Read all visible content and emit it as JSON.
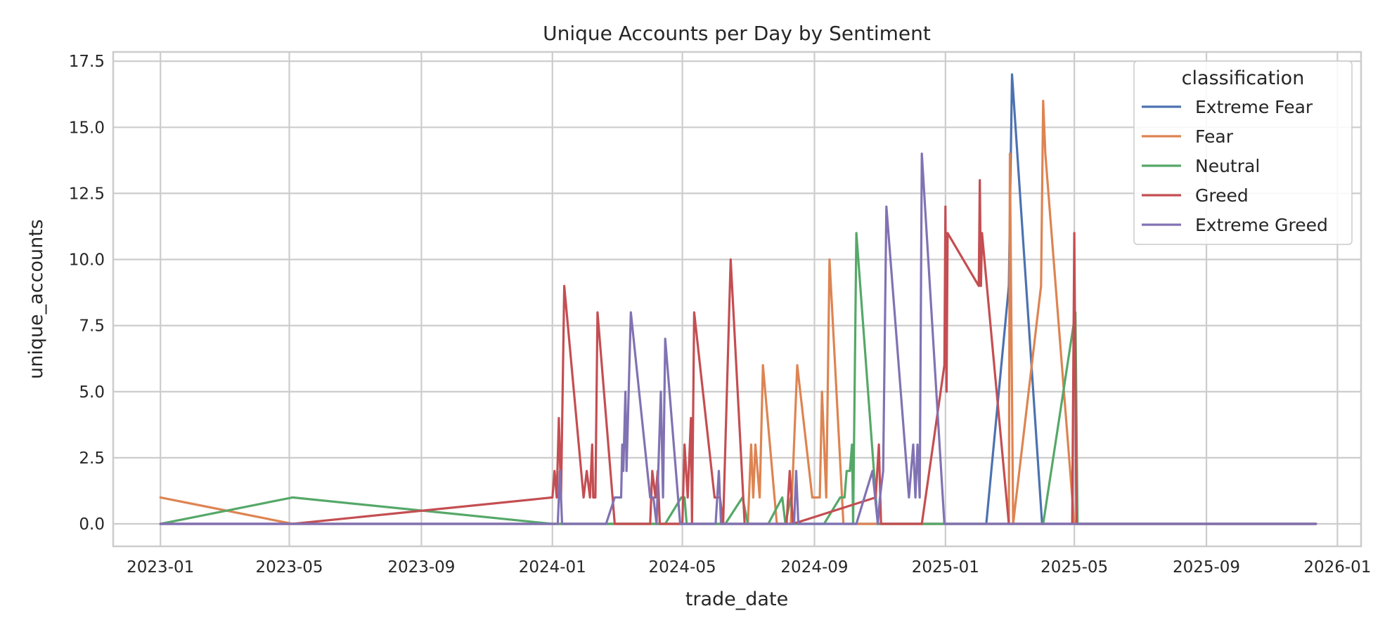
{
  "chart_data": {
    "type": "line",
    "title": "Unique Accounts per Day by Sentiment",
    "xlabel": "trade_date",
    "ylabel": "unique_accounts",
    "x_axis_type": "date",
    "xlim": [
      "2022-11-18",
      "2026-01-23"
    ],
    "ylim": [
      -0.85,
      17.85
    ],
    "x_ticks": [
      "2023-01",
      "2023-05",
      "2023-09",
      "2024-01",
      "2024-05",
      "2024-09",
      "2025-01",
      "2025-05",
      "2025-09",
      "2026-01"
    ],
    "y_ticks": [
      "0.0",
      "2.5",
      "5.0",
      "7.5",
      "10.0",
      "12.5",
      "15.0",
      "17.5"
    ],
    "grid": true,
    "legend": {
      "title": "classification",
      "position": "top-right"
    },
    "series": [
      {
        "name": "Extreme Fear",
        "color": "#4c72b0",
        "points": [
          [
            "2023-01-01",
            0
          ],
          [
            "2025-02-08",
            0
          ],
          [
            "2025-03-01",
            9
          ],
          [
            "2025-03-04",
            17
          ],
          [
            "2025-04-01",
            0
          ],
          [
            "2025-12-12",
            0
          ]
        ]
      },
      {
        "name": "Fear",
        "color": "#dd8452",
        "points": [
          [
            "2023-01-01",
            1
          ],
          [
            "2023-05-04",
            0
          ],
          [
            "2024-07-01",
            0
          ],
          [
            "2024-07-04",
            3
          ],
          [
            "2024-07-06",
            1
          ],
          [
            "2024-07-08",
            3
          ],
          [
            "2024-07-12",
            1
          ],
          [
            "2024-07-15",
            6
          ],
          [
            "2024-07-28",
            0
          ],
          [
            "2024-08-10",
            0
          ],
          [
            "2024-08-16",
            6
          ],
          [
            "2024-08-30",
            1
          ],
          [
            "2024-09-06",
            1
          ],
          [
            "2024-09-08",
            5
          ],
          [
            "2024-09-12",
            1
          ],
          [
            "2024-09-15",
            10
          ],
          [
            "2024-09-28",
            0
          ],
          [
            "2025-03-01",
            0
          ],
          [
            "2025-03-02",
            14
          ],
          [
            "2025-03-05",
            0
          ],
          [
            "2025-03-31",
            9
          ],
          [
            "2025-04-02",
            16
          ],
          [
            "2025-04-04",
            14
          ],
          [
            "2025-05-01",
            0
          ],
          [
            "2025-12-12",
            0
          ]
        ]
      },
      {
        "name": "Neutral",
        "color": "#55a868",
        "points": [
          [
            "2023-01-01",
            0
          ],
          [
            "2023-05-04",
            1
          ],
          [
            "2024-01-01",
            0
          ],
          [
            "2024-04-15",
            0
          ],
          [
            "2024-04-30",
            1
          ],
          [
            "2024-05-03",
            1
          ],
          [
            "2024-05-05",
            0
          ],
          [
            "2024-06-10",
            0
          ],
          [
            "2024-06-26",
            1
          ],
          [
            "2024-07-01",
            0
          ],
          [
            "2024-07-20",
            0
          ],
          [
            "2024-08-02",
            1
          ],
          [
            "2024-08-05",
            0
          ],
          [
            "2024-08-10",
            1
          ],
          [
            "2024-08-12",
            0
          ],
          [
            "2024-09-10",
            0
          ],
          [
            "2024-09-25",
            1
          ],
          [
            "2024-09-29",
            1
          ],
          [
            "2024-10-01",
            2
          ],
          [
            "2024-10-04",
            2
          ],
          [
            "2024-10-06",
            3
          ],
          [
            "2024-10-07",
            0
          ],
          [
            "2024-10-10",
            11
          ],
          [
            "2024-10-30",
            0
          ],
          [
            "2025-04-02",
            0
          ],
          [
            "2025-05-02",
            8
          ],
          [
            "2025-05-04",
            0
          ],
          [
            "2025-12-12",
            0
          ]
        ]
      },
      {
        "name": "Greed",
        "color": "#c44e52",
        "points": [
          [
            "2023-01-01",
            0
          ],
          [
            "2023-05-04",
            0
          ],
          [
            "2024-01-01",
            1
          ],
          [
            "2024-01-03",
            2
          ],
          [
            "2024-01-05",
            1
          ],
          [
            "2024-01-07",
            4
          ],
          [
            "2024-01-09",
            1
          ],
          [
            "2024-01-12",
            9
          ],
          [
            "2024-01-30",
            1
          ],
          [
            "2024-02-02",
            2
          ],
          [
            "2024-02-05",
            1
          ],
          [
            "2024-02-07",
            3
          ],
          [
            "2024-02-08",
            1
          ],
          [
            "2024-02-10",
            1
          ],
          [
            "2024-02-12",
            8
          ],
          [
            "2024-02-28",
            0
          ],
          [
            "2024-04-01",
            0
          ],
          [
            "2024-04-03",
            2
          ],
          [
            "2024-04-06",
            1
          ],
          [
            "2024-04-08",
            2
          ],
          [
            "2024-04-10",
            0
          ],
          [
            "2024-05-01",
            0
          ],
          [
            "2024-05-03",
            3
          ],
          [
            "2024-05-06",
            1
          ],
          [
            "2024-05-09",
            4
          ],
          [
            "2024-05-10",
            0
          ],
          [
            "2024-05-12",
            8
          ],
          [
            "2024-05-31",
            1
          ],
          [
            "2024-06-05",
            1
          ],
          [
            "2024-06-08",
            0
          ],
          [
            "2024-06-15",
            10
          ],
          [
            "2024-06-28",
            0
          ],
          [
            "2024-08-06",
            0
          ],
          [
            "2024-08-09",
            2
          ],
          [
            "2024-08-12",
            0
          ],
          [
            "2024-10-28",
            1
          ],
          [
            "2024-10-31",
            3
          ],
          [
            "2024-11-02",
            0
          ],
          [
            "2024-12-10",
            0
          ],
          [
            "2024-12-31",
            6
          ],
          [
            "2025-01-01",
            12
          ],
          [
            "2025-01-02",
            5
          ],
          [
            "2025-01-03",
            11
          ],
          [
            "2025-02-01",
            9
          ],
          [
            "2025-02-02",
            13
          ],
          [
            "2025-02-03",
            9
          ],
          [
            "2025-02-04",
            11
          ],
          [
            "2025-03-01",
            0
          ],
          [
            "2025-04-29",
            0
          ],
          [
            "2025-05-01",
            11
          ],
          [
            "2025-05-03",
            0
          ],
          [
            "2025-12-12",
            0
          ]
        ]
      },
      {
        "name": "Extreme Greed",
        "color": "#8172b3",
        "points": [
          [
            "2023-01-01",
            0
          ],
          [
            "2024-01-06",
            0
          ],
          [
            "2024-01-08",
            2
          ],
          [
            "2024-01-10",
            0
          ],
          [
            "2024-02-20",
            0
          ],
          [
            "2024-02-28",
            1
          ],
          [
            "2024-03-05",
            1
          ],
          [
            "2024-03-06",
            3
          ],
          [
            "2024-03-07",
            2
          ],
          [
            "2024-03-09",
            5
          ],
          [
            "2024-03-10",
            2
          ],
          [
            "2024-03-14",
            8
          ],
          [
            "2024-04-01",
            1
          ],
          [
            "2024-04-04",
            1
          ],
          [
            "2024-04-07",
            0
          ],
          [
            "2024-04-11",
            5
          ],
          [
            "2024-04-13",
            1
          ],
          [
            "2024-04-15",
            7
          ],
          [
            "2024-04-29",
            0
          ],
          [
            "2024-06-01",
            0
          ],
          [
            "2024-06-04",
            2
          ],
          [
            "2024-06-06",
            0
          ],
          [
            "2024-08-13",
            0
          ],
          [
            "2024-08-15",
            2
          ],
          [
            "2024-08-17",
            0
          ],
          [
            "2024-10-10",
            0
          ],
          [
            "2024-10-25",
            2
          ],
          [
            "2024-10-30",
            0
          ],
          [
            "2024-11-01",
            1
          ],
          [
            "2024-11-04",
            2
          ],
          [
            "2024-11-07",
            12
          ],
          [
            "2024-11-28",
            1
          ],
          [
            "2024-12-02",
            3
          ],
          [
            "2024-12-04",
            1
          ],
          [
            "2024-12-06",
            3
          ],
          [
            "2024-12-08",
            1
          ],
          [
            "2024-12-10",
            14
          ],
          [
            "2024-12-31",
            0
          ],
          [
            "2025-12-12",
            0
          ]
        ]
      }
    ]
  }
}
